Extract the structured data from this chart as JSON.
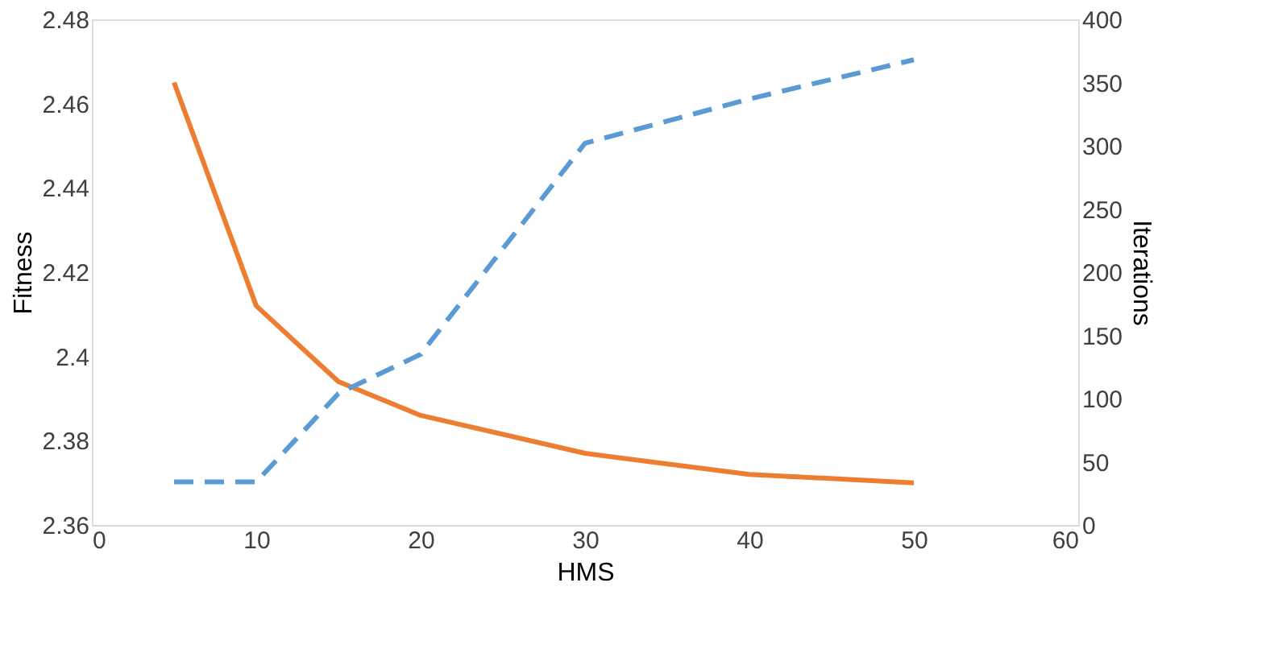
{
  "chart_data": {
    "type": "line",
    "xlabel": "HMS",
    "ylabel": "Fitness",
    "y2label": "Iterations",
    "x": [
      5,
      10,
      15,
      20,
      30,
      40,
      50
    ],
    "series": [
      {
        "color": "#ed7d31",
        "line_style": "solid",
        "values": [
          2.465,
          2.412,
          2.394,
          2.386,
          2.377,
          2.372,
          2.37
        ]
      },
      {
        "color": "#5b9bd5",
        "line_style": "dashed",
        "axis": "y2",
        "values": [
          34,
          34,
          104,
          135,
          302,
          337,
          368
        ]
      }
    ],
    "xlim": [
      0,
      60
    ],
    "xticks": [
      0,
      10,
      20,
      30,
      40,
      50,
      60
    ],
    "ylim": [
      2.36,
      2.48
    ],
    "yticks": [
      2.36,
      2.38,
      2.4,
      2.42,
      2.44,
      2.46,
      2.48
    ],
    "y2lim": [
      0,
      400
    ],
    "y2ticks": [
      0,
      50,
      100,
      150,
      200,
      250,
      300,
      350,
      400
    ],
    "grid": false,
    "marker": "none"
  }
}
